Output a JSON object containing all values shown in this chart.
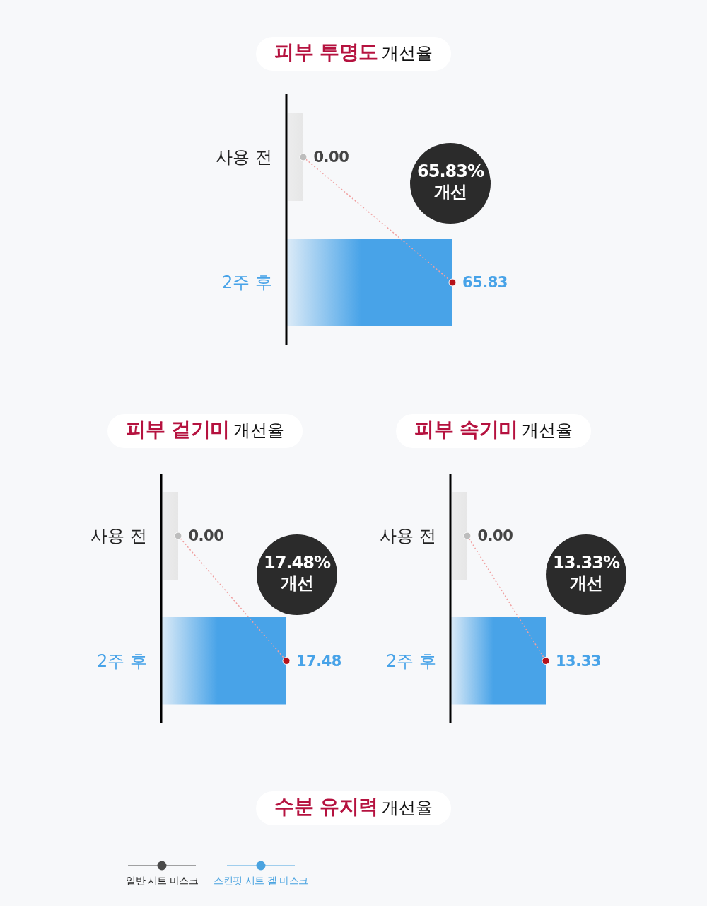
{
  "chart_data": [
    {
      "type": "bar",
      "orientation": "horizontal",
      "title": "피부 투명도 개선율",
      "categories": [
        "사용 전",
        "2주 후"
      ],
      "colors": [
        "#e6e6e6",
        "#48a3e8"
      ],
      "values": [
        0,
        65.83
      ],
      "value_labels": [
        "0.00",
        "65.83"
      ],
      "tick_labels": "y",
      "annotations": [
        "65.83% 개선"
      ]
    },
    {
      "type": "bar",
      "orientation": "horizontal",
      "title": "피부 겉기미 개선율",
      "categories": [
        "사용 전",
        "2주 후"
      ],
      "colors": [
        "#e6e6e6",
        "#48a3e8"
      ],
      "values": [
        0,
        17.48
      ],
      "value_labels": [
        "0.00",
        "17.48"
      ],
      "tick_labels": "y",
      "annotations": [
        "17.48% 개선"
      ]
    },
    {
      "type": "bar",
      "orientation": "horizontal",
      "title": "피부 속기미 개선율",
      "categories": [
        "사용 전",
        "2주 후"
      ],
      "colors": [
        "#e6e6e6",
        "#48a3e8"
      ],
      "values": [
        0,
        13.33
      ],
      "value_labels": [
        "0.00",
        "13.33"
      ],
      "tick_labels": "y",
      "annotations": [
        "13.33% 개선"
      ]
    },
    {
      "type": "other",
      "title": "수분 유지력 개선율",
      "series": [
        {
          "name": "일반 시트 마스크",
          "color": "#4a4a4a"
        },
        {
          "name": "스킨핏 시트 겔 마스크",
          "color": "#4aa3e0"
        }
      ],
      "legend": "top left"
    }
  ]
}
